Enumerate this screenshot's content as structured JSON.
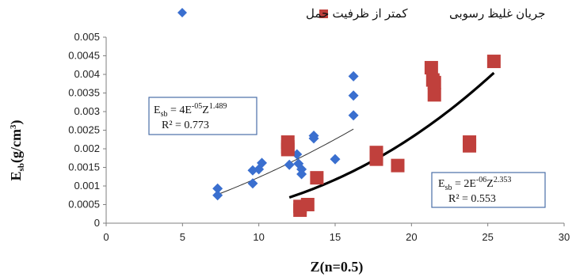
{
  "chart_data": {
    "type": "scatter",
    "xlabel": "Z(n=0.5)",
    "ylabel": "Esb(g/cm3)",
    "xlim": [
      0,
      30
    ],
    "ylim": [
      0,
      0.005
    ],
    "xticks": [
      "0",
      "5",
      "10",
      "15",
      "20",
      "25",
      "30"
    ],
    "yticks": [
      "0",
      "0.0005",
      "0.001",
      "0.0015",
      "0.002",
      "0.0025",
      "0.003",
      "0.0035",
      "0.004",
      "0.0045",
      "0.005"
    ],
    "grid": false,
    "legend_position": "top",
    "series": [
      {
        "name": "کمتر از ظرفیت حمل",
        "marker": "diamond",
        "color": "#3a6fcf",
        "points": [
          [
            7.3,
            0.00093
          ],
          [
            7.3,
            0.00075
          ],
          [
            9.6,
            0.00142
          ],
          [
            10.2,
            0.00162
          ],
          [
            10.0,
            0.00145
          ],
          [
            9.6,
            0.00107
          ],
          [
            12.0,
            0.00157
          ],
          [
            12.5,
            0.00185
          ],
          [
            12.6,
            0.0016
          ],
          [
            12.8,
            0.00145
          ],
          [
            12.8,
            0.00132
          ],
          [
            13.6,
            0.00235
          ],
          [
            13.6,
            0.00228
          ],
          [
            15.0,
            0.00172
          ],
          [
            16.2,
            0.00395
          ],
          [
            16.2,
            0.00343
          ],
          [
            16.2,
            0.0029
          ]
        ],
        "trendline": {
          "type": "power",
          "coef": 4e-05,
          "exp": 1.489,
          "x_range": [
            7.3,
            16.2
          ],
          "label_line1": "Esb = 4E-05Z1.489",
          "label_r2": "R² = 0.773",
          "eq_parts": [
            "E",
            "sb",
            " = 4E",
            "-05",
            "Z",
            "1.489"
          ]
        }
      },
      {
        "name": "جریان غلیظ رسوبی",
        "marker": "square",
        "color": "#c0403c",
        "points": [
          [
            11.9,
            0.00218
          ],
          [
            11.9,
            0.00205
          ],
          [
            11.9,
            0.00198
          ],
          [
            12.7,
            0.00045
          ],
          [
            12.7,
            0.00035
          ],
          [
            13.2,
            0.0005
          ],
          [
            13.8,
            0.00122
          ],
          [
            17.7,
            0.0019
          ],
          [
            17.7,
            0.0018
          ],
          [
            17.7,
            0.00172
          ],
          [
            19.1,
            0.00155
          ],
          [
            21.3,
            0.00418
          ],
          [
            21.4,
            0.00385
          ],
          [
            21.5,
            0.00378
          ],
          [
            21.5,
            0.00345
          ],
          [
            23.8,
            0.00218
          ],
          [
            23.8,
            0.00208
          ],
          [
            25.4,
            0.00435
          ]
        ],
        "trendline": {
          "type": "power",
          "coef": 2e-06,
          "exp": 2.353,
          "x_range": [
            12.0,
            25.4
          ],
          "label_line1": "Esb = 2E-06Z2.353",
          "label_r2": "R² = 0.553",
          "eq_parts": [
            "E",
            "sb",
            " = 2E",
            "-06",
            "Z",
            "2.353"
          ]
        }
      }
    ]
  },
  "colors": {
    "axis": "#7f7f7f",
    "diamond": "#3a6fcf",
    "square": "#c0403c",
    "trend_thin": "#333333",
    "trend_thick": "#000000",
    "eq_box_border": "#4a6ea8",
    "eq_box_fill": "#ffffff"
  }
}
